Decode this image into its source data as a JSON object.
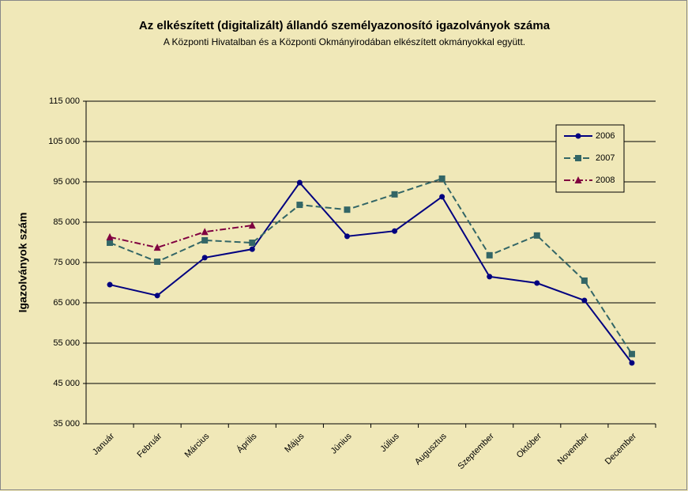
{
  "chart_data": {
    "type": "line",
    "title": "Az elkészített (digitalizált) állandó személyazonosító igazolványok száma",
    "subtitle": "A Központi Hivatalban és a Központi Okmányirodában elkészített okmányokkal együtt.",
    "y_label": "Igazolványok szám",
    "categories": [
      "Január",
      "Február",
      "Március",
      "Április",
      "Május",
      "Június",
      "Július",
      "Augusztus",
      "Szeptember",
      "Október",
      "November",
      "December"
    ],
    "series": [
      {
        "name": "2006",
        "color": "#000080",
        "marker": "circle",
        "line_style": "solid",
        "values": [
          69500,
          66800,
          76200,
          78300,
          94800,
          81500,
          82800,
          91300,
          71500,
          69900,
          65600,
          50100
        ]
      },
      {
        "name": "2007",
        "color": "#336666",
        "marker": "square",
        "line_style": "dashed",
        "values": [
          79900,
          75200,
          80500,
          79900,
          89300,
          88100,
          91900,
          95800,
          76800,
          81700,
          70500,
          52300
        ]
      },
      {
        "name": "2008",
        "color": "#800040",
        "marker": "triangle",
        "line_style": "dashdot",
        "values": [
          81300,
          78700,
          82600,
          84200,
          null,
          null,
          null,
          null,
          null,
          null,
          null,
          null
        ]
      }
    ],
    "ylim": [
      35000,
      115000
    ],
    "yticks": [
      {
        "value": 35000,
        "label": "35 000"
      },
      {
        "value": 45000,
        "label": "45 000"
      },
      {
        "value": 55000,
        "label": "55 000"
      },
      {
        "value": 65000,
        "label": "65 000"
      },
      {
        "value": 75000,
        "label": "75 000"
      },
      {
        "value": 85000,
        "label": "85 000"
      },
      {
        "value": 95000,
        "label": "95 000"
      },
      {
        "value": 105000,
        "label": "105 000"
      },
      {
        "value": 115000,
        "label": "115 000"
      }
    ],
    "grid": true,
    "legend": "upper right"
  }
}
